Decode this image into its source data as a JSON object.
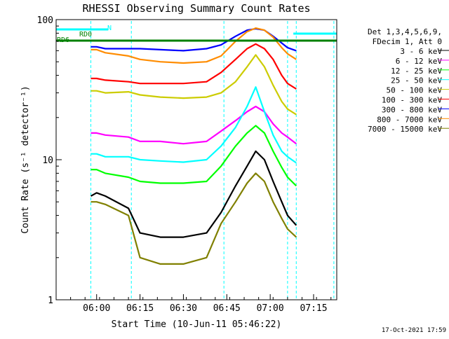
{
  "chart_data": {
    "type": "line",
    "title": "RHESSI Observing Summary Count Rates",
    "xlabel": "Start Time (10-Jun-11 05:46:22)",
    "ylabel": "Count Rate (s⁻¹ detector⁻¹)",
    "y_scale": "log",
    "ylim": [
      1,
      100
    ],
    "xlim_minutes_after_0546": [
      0,
      97
    ],
    "x_ticks": [
      "06:00",
      "06:15",
      "06:30",
      "06:45",
      "07:00",
      "07:15"
    ],
    "y_ticks": [
      "1",
      "10",
      "100"
    ],
    "legend_header": [
      "Det 1,3,4,5,6,9,",
      "FDecim 1, Att 0"
    ],
    "legend_placement": "right, outside plot",
    "timestamp": "17-Oct-2021 17:59",
    "flags": [
      {
        "label": "N",
        "color": "#00ffff",
        "start": "05:46",
        "end": "06:04"
      },
      {
        "label": "RD0",
        "color": "#00ffff",
        "start": "07:08",
        "end": "07:23"
      },
      {
        "label": "RD0",
        "color": "#008000",
        "start": "06:11",
        "end": "07:23"
      },
      {
        "label": "RD6",
        "color": "#008000",
        "start": "05:46",
        "end": "07:23"
      }
    ],
    "night_markers": [
      "05:58",
      "06:12",
      "06:44",
      "07:06",
      "07:09",
      "07:22"
    ],
    "series": [
      {
        "name": "3 - 6 keV",
        "color": "#000000",
        "points": [
          [
            "05:58",
            5.5
          ],
          [
            "06:00",
            5.8
          ],
          [
            "06:03",
            5.5
          ],
          [
            "06:11",
            4.5
          ],
          [
            "06:15",
            3.0
          ],
          [
            "06:22",
            2.8
          ],
          [
            "06:30",
            2.8
          ],
          [
            "06:38",
            3.0
          ],
          [
            "06:43",
            4.2
          ],
          [
            "06:48",
            6.5
          ],
          [
            "06:52",
            9.0
          ],
          [
            "06:55",
            11.5
          ],
          [
            "06:58",
            10.0
          ],
          [
            "07:01",
            7.0
          ],
          [
            "07:04",
            5.0
          ],
          [
            "07:06",
            4.0
          ],
          [
            "07:09",
            3.4
          ]
        ]
      },
      {
        "name": "6 - 12 keV",
        "color": "#ff00ff",
        "points": [
          [
            "05:58",
            15.5
          ],
          [
            "06:00",
            15.5
          ],
          [
            "06:03",
            15.0
          ],
          [
            "06:11",
            14.5
          ],
          [
            "06:15",
            13.5
          ],
          [
            "06:22",
            13.5
          ],
          [
            "06:30",
            13.0
          ],
          [
            "06:38",
            13.5
          ],
          [
            "06:43",
            16.0
          ],
          [
            "06:48",
            19.0
          ],
          [
            "06:52",
            22.0
          ],
          [
            "06:55",
            24.0
          ],
          [
            "06:58",
            22.0
          ],
          [
            "07:01",
            18.0
          ],
          [
            "07:04",
            15.5
          ],
          [
            "07:06",
            14.5
          ],
          [
            "07:09",
            13.0
          ]
        ]
      },
      {
        "name": "12 - 25 keV",
        "color": "#00ff00",
        "points": [
          [
            "05:58",
            8.5
          ],
          [
            "06:00",
            8.5
          ],
          [
            "06:03",
            8.0
          ],
          [
            "06:11",
            7.5
          ],
          [
            "06:15",
            7.0
          ],
          [
            "06:22",
            6.8
          ],
          [
            "06:30",
            6.8
          ],
          [
            "06:38",
            7.0
          ],
          [
            "06:43",
            9.0
          ],
          [
            "06:48",
            12.5
          ],
          [
            "06:52",
            15.5
          ],
          [
            "06:55",
            17.5
          ],
          [
            "06:58",
            15.5
          ],
          [
            "07:01",
            11.5
          ],
          [
            "07:04",
            8.8
          ],
          [
            "07:06",
            7.5
          ],
          [
            "07:09",
            6.5
          ]
        ]
      },
      {
        "name": "25 - 50 keV",
        "color": "#00ffff",
        "points": [
          [
            "05:58",
            11.0
          ],
          [
            "06:00",
            11.0
          ],
          [
            "06:03",
            10.5
          ],
          [
            "06:11",
            10.5
          ],
          [
            "06:15",
            10.0
          ],
          [
            "06:22",
            9.8
          ],
          [
            "06:30",
            9.6
          ],
          [
            "06:38",
            10.0
          ],
          [
            "06:43",
            12.5
          ],
          [
            "06:48",
            17.0
          ],
          [
            "06:52",
            24.0
          ],
          [
            "06:55",
            33.0
          ],
          [
            "06:58",
            22.0
          ],
          [
            "07:01",
            15.0
          ],
          [
            "07:04",
            11.5
          ],
          [
            "07:06",
            10.5
          ],
          [
            "07:09",
            9.5
          ]
        ]
      },
      {
        "name": "50 - 100 keV",
        "color": "#cccc00",
        "points": [
          [
            "05:58",
            31.0
          ],
          [
            "06:00",
            31.0
          ],
          [
            "06:03",
            30.0
          ],
          [
            "06:11",
            30.5
          ],
          [
            "06:15",
            29.0
          ],
          [
            "06:22",
            28.0
          ],
          [
            "06:30",
            27.5
          ],
          [
            "06:38",
            28.0
          ],
          [
            "06:43",
            30.0
          ],
          [
            "06:48",
            36.0
          ],
          [
            "06:52",
            46.0
          ],
          [
            "06:55",
            56.0
          ],
          [
            "06:58",
            46.0
          ],
          [
            "07:01",
            34.0
          ],
          [
            "07:04",
            26.0
          ],
          [
            "07:06",
            23.0
          ],
          [
            "07:09",
            21.0
          ]
        ]
      },
      {
        "name": "100 - 300 keV",
        "color": "#ff0000",
        "points": [
          [
            "05:58",
            38.0
          ],
          [
            "06:00",
            38.0
          ],
          [
            "06:03",
            37.0
          ],
          [
            "06:11",
            36.0
          ],
          [
            "06:15",
            35.0
          ],
          [
            "06:22",
            35.0
          ],
          [
            "06:30",
            35.0
          ],
          [
            "06:38",
            36.0
          ],
          [
            "06:43",
            42.0
          ],
          [
            "06:48",
            52.0
          ],
          [
            "06:52",
            62.0
          ],
          [
            "06:55",
            67.0
          ],
          [
            "06:58",
            62.0
          ],
          [
            "07:01",
            52.0
          ],
          [
            "07:04",
            40.0
          ],
          [
            "07:06",
            35.0
          ],
          [
            "07:09",
            32.0
          ]
        ]
      },
      {
        "name": "300 - 800 keV",
        "color": "#0000ff",
        "points": [
          [
            "05:58",
            64.0
          ],
          [
            "06:00",
            64.0
          ],
          [
            "06:03",
            62.0
          ],
          [
            "06:11",
            62.0
          ],
          [
            "06:15",
            62.0
          ],
          [
            "06:22",
            61.0
          ],
          [
            "06:30",
            60.0
          ],
          [
            "06:38",
            62.0
          ],
          [
            "06:43",
            66.0
          ],
          [
            "06:48",
            76.0
          ],
          [
            "06:52",
            84.0
          ],
          [
            "06:55",
            86.0
          ],
          [
            "06:58",
            84.0
          ],
          [
            "07:01",
            76.0
          ],
          [
            "07:04",
            68.0
          ],
          [
            "07:06",
            63.0
          ],
          [
            "07:09",
            60.0
          ]
        ]
      },
      {
        "name": "800 - 7000 keV",
        "color": "#ff8c00",
        "points": [
          [
            "05:58",
            61.0
          ],
          [
            "06:00",
            61.0
          ],
          [
            "06:03",
            58.0
          ],
          [
            "06:11",
            55.0
          ],
          [
            "06:15",
            52.0
          ],
          [
            "06:22",
            50.0
          ],
          [
            "06:30",
            49.0
          ],
          [
            "06:38",
            50.0
          ],
          [
            "06:43",
            55.0
          ],
          [
            "06:48",
            70.0
          ],
          [
            "06:52",
            82.0
          ],
          [
            "06:55",
            87.0
          ],
          [
            "06:58",
            84.0
          ],
          [
            "07:01",
            75.0
          ],
          [
            "07:04",
            63.0
          ],
          [
            "07:06",
            57.0
          ],
          [
            "07:09",
            52.0
          ]
        ]
      },
      {
        "name": "7000 - 15000 keV",
        "color": "#808000",
        "points": [
          [
            "05:58",
            5.0
          ],
          [
            "06:00",
            5.0
          ],
          [
            "06:03",
            4.8
          ],
          [
            "06:11",
            4.0
          ],
          [
            "06:15",
            2.0
          ],
          [
            "06:22",
            1.8
          ],
          [
            "06:30",
            1.8
          ],
          [
            "06:38",
            2.0
          ],
          [
            "06:43",
            3.5
          ],
          [
            "06:48",
            5.0
          ],
          [
            "06:52",
            6.8
          ],
          [
            "06:55",
            8.0
          ],
          [
            "06:58",
            7.0
          ],
          [
            "07:01",
            5.0
          ],
          [
            "07:04",
            3.8
          ],
          [
            "07:06",
            3.2
          ],
          [
            "07:09",
            2.8
          ]
        ]
      }
    ]
  }
}
